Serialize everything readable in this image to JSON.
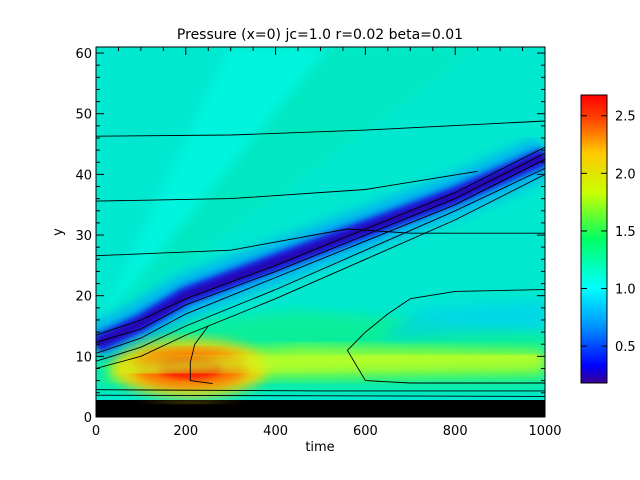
{
  "chart_data": {
    "type": "heatmap",
    "title": "Pressure (x=0) jc=1.0 r=0.02 beta=0.01",
    "xlabel": "time",
    "ylabel": "y",
    "xlim": [
      0,
      1000
    ],
    "ylim": [
      0,
      61
    ],
    "xticks": [
      0,
      200,
      400,
      600,
      800,
      1000
    ],
    "yticks": [
      0,
      10,
      20,
      30,
      40,
      50,
      60
    ],
    "colorbar": {
      "range": [
        0.18,
        2.68
      ],
      "ticks": [
        0.5,
        1.0,
        1.5,
        2.0,
        2.5
      ],
      "tick_labels": [
        "0.5",
        "1.0",
        "1.5",
        "2.0",
        "2.5"
      ],
      "colormap": "rainbow"
    },
    "background_value": 1.15,
    "features": [
      {
        "name": "pressure-trough",
        "kind": "band",
        "value": 0.2,
        "path": [
          [
            0,
            12
          ],
          [
            100,
            15.5
          ],
          [
            200,
            20
          ],
          [
            400,
            25.5
          ],
          [
            600,
            31
          ],
          [
            800,
            36.5
          ],
          [
            1000,
            43
          ]
        ]
      },
      {
        "name": "pressure-peak",
        "kind": "hotspot",
        "value": 2.6,
        "center": [
          210,
          8
        ],
        "extent": [
          90,
          1.4
        ]
      },
      {
        "name": "high-band",
        "kind": "band",
        "value": 1.85,
        "path": [
          [
            60,
            7.5
          ],
          [
            200,
            8.5
          ],
          [
            400,
            9
          ],
          [
            600,
            9.5
          ],
          [
            800,
            9.8
          ],
          [
            1000,
            10
          ]
        ]
      }
    ],
    "contours": [
      [
        [
          0,
          46.3
        ],
        [
          300,
          46.5
        ],
        [
          600,
          47.3
        ],
        [
          1000,
          48.8
        ]
      ],
      [
        [
          0,
          35.6
        ],
        [
          300,
          36
        ],
        [
          600,
          37.5
        ],
        [
          850,
          40.5
        ]
      ],
      [
        [
          0,
          26.6
        ],
        [
          300,
          27.5
        ],
        [
          560,
          31
        ]
      ],
      [
        [
          0,
          13.5
        ],
        [
          100,
          16
        ],
        [
          200,
          19.5
        ],
        [
          400,
          25
        ],
        [
          600,
          31
        ],
        [
          800,
          37
        ],
        [
          1000,
          44.5
        ]
      ],
      [
        [
          0,
          12.3
        ],
        [
          100,
          14.5
        ],
        [
          200,
          18.5
        ],
        [
          400,
          24
        ],
        [
          600,
          30
        ],
        [
          800,
          36
        ],
        [
          1000,
          43.5
        ]
      ],
      [
        [
          0,
          10.5
        ],
        [
          100,
          13
        ],
        [
          200,
          17
        ],
        [
          400,
          23
        ],
        [
          600,
          29
        ],
        [
          800,
          35
        ],
        [
          1000,
          42.5
        ]
      ],
      [
        [
          0,
          9.2
        ],
        [
          100,
          11.5
        ],
        [
          200,
          15
        ],
        [
          400,
          21
        ],
        [
          600,
          27.5
        ],
        [
          800,
          34
        ],
        [
          1000,
          41
        ]
      ],
      [
        [
          0,
          8
        ],
        [
          100,
          10
        ],
        [
          200,
          13.5
        ],
        [
          400,
          19.5
        ],
        [
          600,
          26
        ],
        [
          800,
          32.5
        ],
        [
          1000,
          40
        ]
      ],
      [
        [
          560,
          31
        ],
        [
          700,
          30.3
        ],
        [
          1000,
          30.3
        ]
      ],
      [
        [
          700,
          19.5
        ],
        [
          800,
          20.7
        ],
        [
          1000,
          21
        ]
      ],
      [
        [
          700,
          19.5
        ],
        [
          650,
          17
        ],
        [
          600,
          14
        ],
        [
          560,
          11
        ],
        [
          600,
          6
        ],
        [
          700,
          5.6
        ],
        [
          1000,
          5.6
        ]
      ],
      [
        [
          250,
          15
        ],
        [
          220,
          12
        ],
        [
          210,
          9
        ],
        [
          210,
          6
        ],
        [
          260,
          5.5
        ]
      ],
      [
        [
          0,
          4.5
        ],
        [
          500,
          4.3
        ],
        [
          1000,
          4.3
        ]
      ],
      [
        [
          0,
          3.6
        ],
        [
          500,
          3.5
        ],
        [
          1000,
          3.4
        ]
      ],
      [
        [
          0,
          2.7
        ],
        [
          500,
          2.6
        ],
        [
          1000,
          2.6
        ]
      ],
      [
        [
          0,
          1.8
        ],
        [
          1000,
          1.8
        ]
      ],
      [
        [
          0,
          1.0
        ],
        [
          1000,
          1.0
        ]
      ]
    ]
  }
}
